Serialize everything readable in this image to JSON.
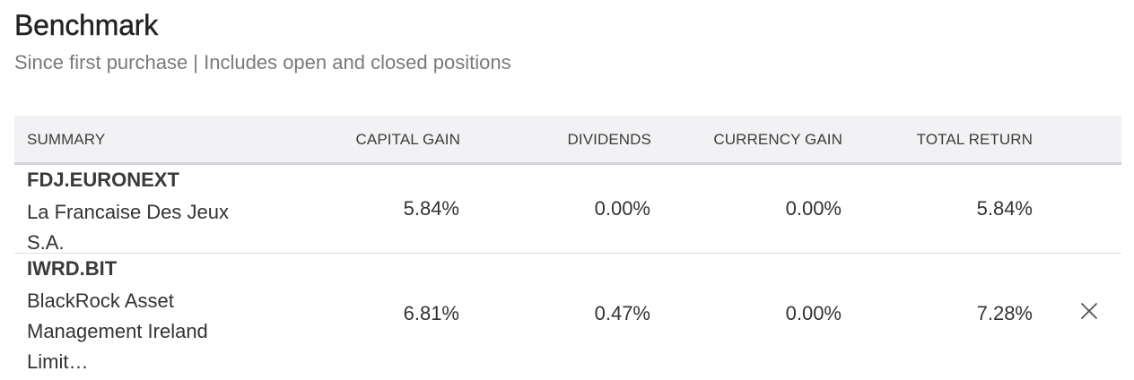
{
  "header": {
    "title": "Benchmark",
    "subtitle": "Since first purchase | Includes open and closed positions"
  },
  "table": {
    "columns": {
      "summary": "SUMMARY",
      "capital_gain": "CAPITAL GAIN",
      "dividends": "DIVIDENDS",
      "currency_gain": "CURRENCY GAIN",
      "total_return": "TOTAL RETURN"
    },
    "rows": [
      {
        "ticker": "FDJ.EURONEXT",
        "name": "La Francaise Des Jeux S.A.",
        "capital_gain": "5.84%",
        "dividends": "0.00%",
        "currency_gain": "0.00%",
        "total_return": "5.84%"
      },
      {
        "ticker": "IWRD.BIT",
        "name": "BlackRock Asset Management Ireland Limit…",
        "capital_gain": "6.81%",
        "dividends": "0.47%",
        "currency_gain": "0.00%",
        "total_return": "7.28%",
        "remove_icon": "close-icon"
      }
    ]
  },
  "colors": {
    "header_bg": "#f2f2f4",
    "header_border": "#d4d4d8",
    "row_divider": "#e2e2e2",
    "subtitle": "#7a7a7a"
  }
}
